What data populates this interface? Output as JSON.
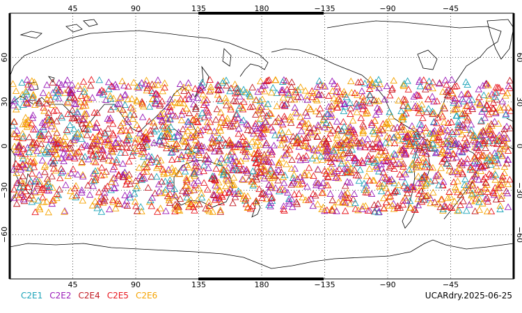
{
  "map": {
    "projection": "equirectangular",
    "center_longitude": 180,
    "lon_range": [
      0,
      360
    ],
    "lat_range": [
      -90,
      90
    ],
    "lon_ticks": [
      {
        "lon": 45,
        "label": "45"
      },
      {
        "lon": 90,
        "label": "90"
      },
      {
        "lon": 135,
        "label": "135"
      },
      {
        "lon": 180,
        "label": "180"
      },
      {
        "lon": 225,
        "label": "−135"
      },
      {
        "lon": 270,
        "label": "−90"
      },
      {
        "lon": 315,
        "label": "−45"
      }
    ],
    "lat_ticks": [
      {
        "lat": 60,
        "label": "60"
      },
      {
        "lat": 30,
        "label": "30"
      },
      {
        "lat": 0,
        "label": "0"
      },
      {
        "lat": -30,
        "label": "−30"
      },
      {
        "lat": -60,
        "label": "−60"
      }
    ],
    "grid": "dotted",
    "marker": "open-triangle",
    "observation_lat_range": [
      -45,
      45
    ]
  },
  "legend": [
    {
      "label": "C2E1",
      "color": "#1aa3b8"
    },
    {
      "label": "C2E2",
      "color": "#9a1ab8"
    },
    {
      "label": "C2E4",
      "color": "#c01820"
    },
    {
      "label": "C2E5",
      "color": "#e8141c"
    },
    {
      "label": "C2E6",
      "color": "#f5a300"
    }
  ],
  "datestamp": "UCARdry.2025-06-25"
}
